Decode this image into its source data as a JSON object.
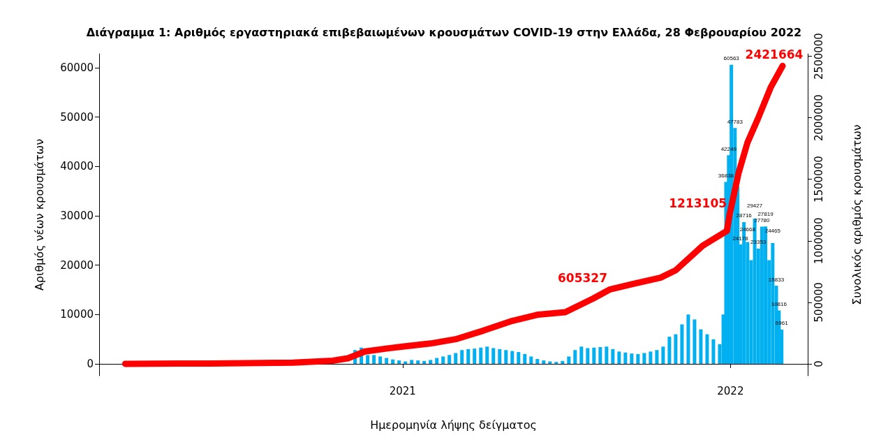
{
  "chart_data": {
    "type": "bar",
    "title": "Διάγραμμα 1: Αριθμός εργαστηριακά επιβεβαιωμένων κρουσμάτων COVID-19 στην Ελλάδα, 28 Φεβρουαρίου 2022",
    "xlabel": "Ημερομηνία λήψης δείγματος",
    "ylabel": "Αριθμός νέων κρουσμάτων",
    "y2label": "Συνολικός αριθμός κρουσμάτων",
    "xlim": [
      "2020-01-29",
      "2022-03-28"
    ],
    "xticks": [
      {
        "value": "2021-01-01",
        "label": "2021"
      },
      {
        "value": "2022-01-01",
        "label": "2022"
      }
    ],
    "ylim": [
      -2400,
      62800
    ],
    "yticks": [
      0,
      10000,
      20000,
      30000,
      40000,
      50000,
      60000
    ],
    "y2lim": [
      -97000,
      2520000
    ],
    "y2ticks": [
      0,
      500000,
      1000000,
      1500000,
      2000000,
      2500000
    ],
    "grid": false,
    "series": [
      {
        "color": "#00b0f0",
        "x": [
          "2020-11-09",
          "2020-11-16",
          "2020-11-23",
          "2020-11-30",
          "2020-12-07",
          "2020-12-14",
          "2020-12-21",
          "2020-12-28",
          "2021-01-04",
          "2021-01-11",
          "2021-01-18",
          "2021-01-25",
          "2021-02-01",
          "2021-02-08",
          "2021-02-15",
          "2021-02-22",
          "2021-03-01",
          "2021-03-08",
          "2021-03-15",
          "2021-03-22",
          "2021-03-29",
          "2021-04-05",
          "2021-04-12",
          "2021-04-19",
          "2021-04-26",
          "2021-05-03",
          "2021-05-10",
          "2021-05-17",
          "2021-05-24",
          "2021-05-31",
          "2021-06-07",
          "2021-06-14",
          "2021-06-21",
          "2021-06-28",
          "2021-07-05",
          "2021-07-12",
          "2021-07-19",
          "2021-07-26",
          "2021-08-02",
          "2021-08-09",
          "2021-08-16",
          "2021-08-23",
          "2021-08-30",
          "2021-09-06",
          "2021-09-13",
          "2021-09-20",
          "2021-09-27",
          "2021-10-04",
          "2021-10-11",
          "2021-10-18",
          "2021-10-25",
          "2021-11-01",
          "2021-11-08",
          "2021-11-15",
          "2021-11-22",
          "2021-11-29",
          "2021-12-06",
          "2021-12-13",
          "2021-12-20",
          "2021-12-24",
          "2021-12-27",
          "2021-12-30",
          "2022-01-02",
          "2022-01-06",
          "2022-01-09",
          "2022-01-12",
          "2022-01-16",
          "2022-01-20",
          "2022-01-24",
          "2022-01-28",
          "2022-02-01",
          "2022-02-05",
          "2022-02-09",
          "2022-02-13",
          "2022-02-17",
          "2022-02-21",
          "2022-02-24",
          "2022-02-27"
        ],
        "values": [
          2800,
          3300,
          1800,
          1800,
          1500,
          1200,
          900,
          700,
          500,
          800,
          700,
          600,
          800,
          1200,
          1500,
          1800,
          2200,
          2800,
          3000,
          3100,
          3300,
          3500,
          3200,
          3000,
          2800,
          2600,
          2400,
          2000,
          1500,
          1000,
          700,
          500,
          400,
          600,
          1500,
          2800,
          3500,
          3200,
          3300,
          3400,
          3500,
          3000,
          2500,
          2300,
          2100,
          2000,
          2200,
          2500,
          2800,
          3500,
          5500,
          6000,
          8000,
          10000,
          9000,
          7000,
          6000,
          5000,
          4000,
          10000,
          36838,
          42249,
          60563,
          47783,
          36000,
          24178,
          28716,
          24668,
          21000,
          29427,
          23353,
          27780,
          27819,
          21000,
          24465,
          15833,
          10816,
          6961
        ],
        "value_labels": [
          null,
          null,
          null,
          null,
          null,
          null,
          null,
          null,
          null,
          null,
          null,
          null,
          null,
          null,
          null,
          null,
          null,
          null,
          null,
          null,
          null,
          null,
          null,
          null,
          null,
          null,
          null,
          null,
          null,
          null,
          null,
          null,
          null,
          null,
          null,
          null,
          null,
          null,
          null,
          null,
          null,
          null,
          null,
          null,
          null,
          null,
          null,
          null,
          null,
          null,
          null,
          null,
          null,
          null,
          null,
          null,
          null,
          null,
          null,
          null,
          "36838",
          "42249",
          "60563",
          "47783",
          null,
          "24178",
          "28716",
          "24668",
          null,
          "29427",
          "23353",
          "27780",
          "27819",
          null,
          "24465",
          "15833",
          "10816",
          "6961"
        ]
      },
      {
        "type": "line",
        "axis": "y2",
        "color": "#ff0000",
        "x": [
          "2020-02-27",
          "2020-06-01",
          "2020-09-01",
          "2020-10-15",
          "2020-11-01",
          "2020-11-20",
          "2020-12-15",
          "2021-01-01",
          "2021-02-01",
          "2021-03-01",
          "2021-04-01",
          "2021-05-01",
          "2021-06-01",
          "2021-07-01",
          "2021-08-01",
          "2021-08-20",
          "2021-09-15",
          "2021-10-15",
          "2021-11-01",
          "2021-12-01",
          "2021-12-28",
          "2021-12-31",
          "2022-01-10",
          "2022-01-20",
          "2022-02-01",
          "2022-02-15",
          "2022-02-28"
        ],
        "values": [
          0,
          3000,
          10000,
          25000,
          45000,
          100000,
          125000,
          140000,
          165000,
          200000,
          270000,
          345000,
          400000,
          420000,
          530000,
          605327,
          650000,
          700000,
          760000,
          960000,
          1080000,
          1213105,
          1550000,
          1800000,
          2000000,
          2250000,
          2421664
        ],
        "value_labels": [
          null,
          null,
          null,
          null,
          null,
          null,
          null,
          null,
          null,
          null,
          null,
          null,
          null,
          null,
          null,
          "605327",
          null,
          null,
          null,
          null,
          null,
          "1213105",
          null,
          null,
          null,
          null,
          "2421664"
        ]
      }
    ]
  }
}
